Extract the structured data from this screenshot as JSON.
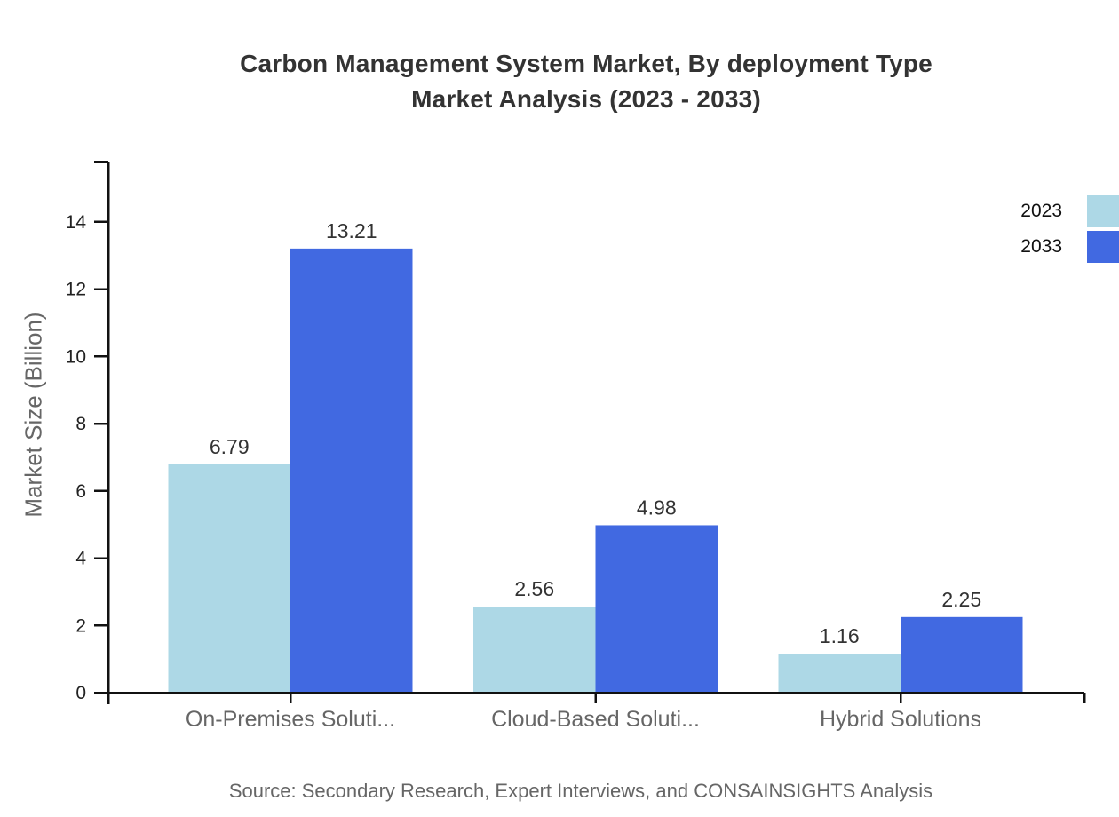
{
  "title": {
    "line1": "Carbon Management System Market, By deployment Type",
    "line2": "Market Analysis (2023 - 2033)"
  },
  "source": "Source: Secondary Research, Expert Interviews, and CONSAINSIGHTS Analysis",
  "chart_data": {
    "type": "bar",
    "categories": [
      "On-Premises Soluti...",
      "Cloud-Based Soluti...",
      "Hybrid Solutions"
    ],
    "series": [
      {
        "name": "2023",
        "color": "#ADD8E6",
        "values": [
          6.79,
          2.56,
          1.16
        ]
      },
      {
        "name": "2033",
        "color": "#4169E1",
        "values": [
          13.21,
          4.98,
          2.25
        ]
      }
    ],
    "ylabel": "Market Size (Billion)",
    "ylim": [
      0,
      15.8
    ],
    "yticks": [
      0,
      2,
      4,
      6,
      8,
      10,
      12,
      14
    ],
    "grid": false,
    "legend_position": "top-right",
    "value_labels": true
  },
  "colors": {
    "axis": "#111111",
    "tick_label": "#222222",
    "value_label": "#333333",
    "muted_label": "#666666",
    "title": "#333333"
  }
}
